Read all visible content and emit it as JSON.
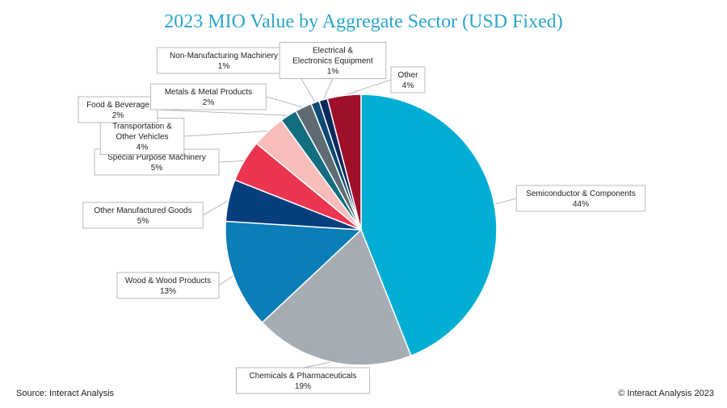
{
  "chart_data": {
    "type": "pie",
    "title": "2023 MIO Value by Aggregate Sector (USD Fixed)",
    "slices": [
      {
        "label": "Semiconductor & Components",
        "value": 44,
        "display": "44%",
        "color": "#00AED4"
      },
      {
        "label": "Chemicals & Pharmaceuticals",
        "value": 19,
        "display": "19%",
        "color": "#A5ADB3"
      },
      {
        "label": "Wood & Wood Products",
        "value": 13,
        "display": "13%",
        "color": "#0B7DB7"
      },
      {
        "label": "Other Manufactured Goods",
        "value": 5,
        "display": "5%",
        "color": "#073E7E"
      },
      {
        "label": "Special Purpose Machinery",
        "value": 5,
        "display": "5%",
        "color": "#EC3551"
      },
      {
        "label": "Transportation & Other Vehicles",
        "value": 4,
        "display": "4%",
        "color": "#F6BDBA"
      },
      {
        "label": "Food & Beverage",
        "value": 2,
        "display": "2%",
        "color": "#126E7F"
      },
      {
        "label": "Metals & Metal Products",
        "value": 2,
        "display": "2%",
        "color": "#5F6B73"
      },
      {
        "label": "Non-Manufacturing Machinery",
        "value": 1,
        "display": "1%",
        "color": "#0E4A73"
      },
      {
        "label": "Electrical & Electronics Equipment",
        "value": 1,
        "display": "1%",
        "color": "#0B2A5C"
      },
      {
        "label": "Other",
        "value": 4,
        "display": "4%",
        "color": "#9E0F2A"
      }
    ],
    "value_unit": "%"
  },
  "footer": {
    "source": "Source: Interact Analysis",
    "copyright": "© Interact Analysis 2023"
  }
}
